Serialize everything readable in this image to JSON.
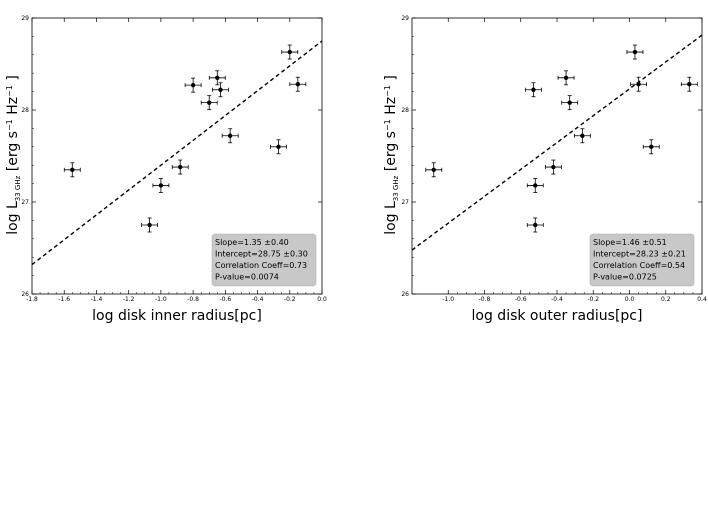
{
  "chart_data": [
    {
      "type": "scatter",
      "xlabel": "log disk inner radius[pc]",
      "ylabel_main": "log L",
      "ylabel_sub": "33 GHz",
      "ylabel_unit": "[erg s",
      "ylabel_unit_sup": "−1",
      "ylabel_unit2": " Hz",
      "ylabel_unit2_sup": "−1",
      "ylabel_close": "]",
      "xlim": [
        -1.8,
        0.0
      ],
      "ylim": [
        26,
        29
      ],
      "xticks": [
        "-1.8",
        "-1.6",
        "-1.4",
        "-1.2",
        "-1.0",
        "-0.8",
        "-0.6",
        "-0.4",
        "-0.2",
        "0.0"
      ],
      "xtick_values": [
        -1.8,
        -1.6,
        -1.4,
        -1.2,
        -1.0,
        -0.8,
        -0.6,
        -0.4,
        -0.2,
        0.0
      ],
      "yticks": [
        "26",
        "27",
        "28",
        "29"
      ],
      "ytick_values": [
        26,
        27,
        28,
        29
      ],
      "points": [
        {
          "x": -1.55,
          "y": 27.35
        },
        {
          "x": -1.07,
          "y": 26.75
        },
        {
          "x": -1.0,
          "y": 27.18
        },
        {
          "x": -0.88,
          "y": 27.38
        },
        {
          "x": -0.8,
          "y": 28.27
        },
        {
          "x": -0.7,
          "y": 28.08
        },
        {
          "x": -0.65,
          "y": 28.35
        },
        {
          "x": -0.63,
          "y": 28.22
        },
        {
          "x": -0.57,
          "y": 27.72
        },
        {
          "x": -0.27,
          "y": 27.6
        },
        {
          "x": -0.2,
          "y": 28.63
        },
        {
          "x": -0.15,
          "y": 28.28
        }
      ],
      "fit": {
        "slope": 1.35,
        "intercept": 28.75
      },
      "stats": [
        "Slope=1.35 ±0.40",
        "Intercept=28.75 ±0.30",
        "Correlation Coeff=0.73",
        "P-value=0.0074"
      ],
      "legend_placement": "bottom-right"
    },
    {
      "type": "scatter",
      "xlabel": "log disk outer radius[pc]",
      "ylabel_main": "log L",
      "ylabel_sub": "33 GHz",
      "ylabel_unit": "[erg s",
      "ylabel_unit_sup": "−1",
      "ylabel_unit2": " Hz",
      "ylabel_unit2_sup": "−1",
      "ylabel_close": "]",
      "xlim": [
        -1.2,
        0.4
      ],
      "ylim": [
        26,
        29
      ],
      "xticks": [
        "-1.0",
        "-0.8",
        "-0.6",
        "-0.4",
        "-0.2",
        "0.0",
        "0.2",
        "0.4"
      ],
      "xtick_values": [
        -1.0,
        -0.8,
        -0.6,
        -0.4,
        -0.2,
        0.0,
        0.2,
        0.4
      ],
      "yticks": [
        "26",
        "27",
        "28",
        "29"
      ],
      "ytick_values": [
        26,
        27,
        28,
        29
      ],
      "points": [
        {
          "x": -1.08,
          "y": 27.35
        },
        {
          "x": -0.53,
          "y": 28.22
        },
        {
          "x": -0.52,
          "y": 27.18
        },
        {
          "x": -0.52,
          "y": 26.75
        },
        {
          "x": -0.42,
          "y": 27.38
        },
        {
          "x": -0.35,
          "y": 28.35
        },
        {
          "x": -0.33,
          "y": 28.08
        },
        {
          "x": -0.26,
          "y": 27.72
        },
        {
          "x": 0.03,
          "y": 28.63
        },
        {
          "x": 0.05,
          "y": 28.28
        },
        {
          "x": 0.12,
          "y": 27.6
        },
        {
          "x": 0.33,
          "y": 28.28
        }
      ],
      "fit": {
        "slope": 1.46,
        "intercept": 28.23
      },
      "stats": [
        "Slope=1.46 ±0.51",
        "Intercept=28.23 ±0.21",
        "Correlation Coeff=0.54",
        "P-value=0.0725"
      ],
      "legend_placement": "bottom-right"
    }
  ]
}
